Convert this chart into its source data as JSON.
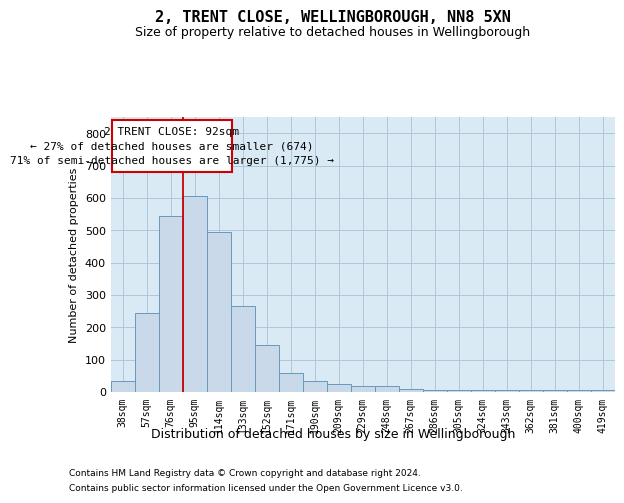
{
  "title": "2, TRENT CLOSE, WELLINGBOROUGH, NN8 5XN",
  "subtitle": "Size of property relative to detached houses in Wellingborough",
  "xlabel": "Distribution of detached houses by size in Wellingborough",
  "ylabel": "Number of detached properties",
  "footer1": "Contains HM Land Registry data © Crown copyright and database right 2024.",
  "footer2": "Contains public sector information licensed under the Open Government Licence v3.0.",
  "annotation_line1": "2 TRENT CLOSE: 92sqm",
  "annotation_line2": "← 27% of detached houses are smaller (674)",
  "annotation_line3": "71% of semi-detached houses are larger (1,775) →",
  "bar_color": "#c9d9ea",
  "bar_edge_color": "#6699bb",
  "grid_color": "#aec6d8",
  "background_color": "#daeaf5",
  "vline_color": "#cc0000",
  "annotation_box_edgecolor": "#cc0000",
  "categories": [
    "38sqm",
    "57sqm",
    "76sqm",
    "95sqm",
    "114sqm",
    "133sqm",
    "152sqm",
    "171sqm",
    "190sqm",
    "209sqm",
    "229sqm",
    "248sqm",
    "267sqm",
    "286sqm",
    "305sqm",
    "324sqm",
    "343sqm",
    "362sqm",
    "381sqm",
    "400sqm",
    "419sqm"
  ],
  "values": [
    35,
    245,
    545,
    605,
    495,
    265,
    145,
    60,
    35,
    25,
    20,
    20,
    10,
    5,
    5,
    5,
    5,
    5,
    5,
    5,
    5
  ],
  "ylim": [
    0,
    850
  ],
  "yticks": [
    0,
    100,
    200,
    300,
    400,
    500,
    600,
    700,
    800
  ],
  "vline_bar_index": 3
}
